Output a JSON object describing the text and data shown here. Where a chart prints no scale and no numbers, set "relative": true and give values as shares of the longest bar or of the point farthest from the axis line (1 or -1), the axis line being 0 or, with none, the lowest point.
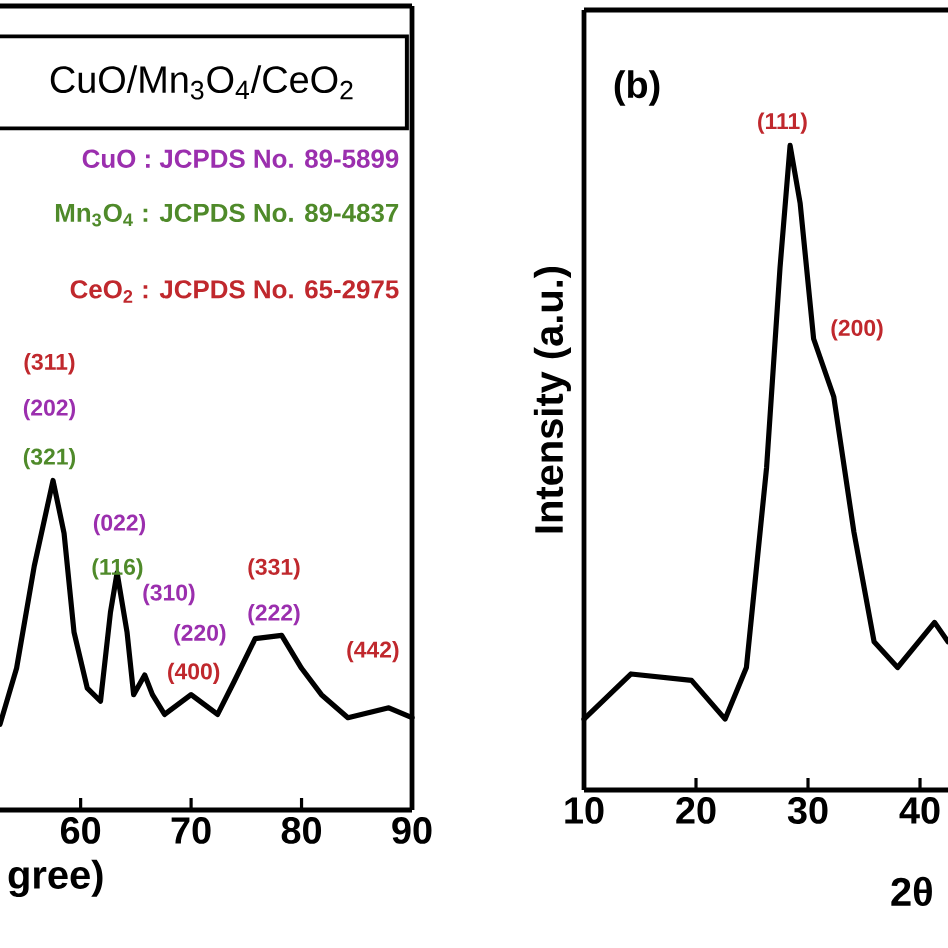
{
  "chart_data": [
    {
      "type": "line",
      "relative": true,
      "title": "CuO/Mn$_{3}$O$_{4}$/CeO$_{2}$",
      "xlabel": "gree)",
      "xlim": [
        52.7,
        90
      ],
      "xticks": [
        60,
        70,
        80,
        90
      ],
      "color": "#000000",
      "x": [
        52.7,
        54.2,
        55.8,
        57.5,
        58.5,
        59.4,
        60.6,
        61.8,
        62.7,
        63.3,
        64.2,
        64.8,
        65.8,
        66.5,
        67.6,
        70.0,
        72.4,
        73.9,
        75.8,
        78.2,
        80.0,
        81.8,
        84.2,
        87.9,
        90
      ],
      "values": [
        0.26,
        0.43,
        0.74,
        1.0,
        0.84,
        0.54,
        0.37,
        0.33,
        0.6,
        0.72,
        0.54,
        0.35,
        0.41,
        0.35,
        0.29,
        0.35,
        0.29,
        0.39,
        0.52,
        0.53,
        0.43,
        0.35,
        0.28,
        0.31,
        0.28
      ],
      "annotations": [
        "CuO : JCPDS No. 89-5899",
        "Mn$_{3}$O$_{4}$ : JCPDS No. 89-4837",
        "CeO$_{2}$ : JCPDS No. 65-2975",
        "(311)",
        "(202)",
        "(321)",
        "(022)",
        "(116)",
        "(310)",
        "(220)",
        "(400)",
        "(331)",
        "(222)",
        "(442)"
      ]
    },
    {
      "type": "line",
      "relative": true,
      "title": "(b)",
      "xlabel": "2θ",
      "ylabel": "Intensity (a.u.)",
      "xlim": [
        10,
        42.5
      ],
      "xticks": [
        10,
        20,
        30,
        40
      ],
      "color": "#000000",
      "x": [
        10,
        14.2,
        19.6,
        22.6,
        24.5,
        26.3,
        27.5,
        28.4,
        29.3,
        30.5,
        32.3,
        34.1,
        35.9,
        38.0,
        41.3,
        42.5
      ],
      "values": [
        0.11,
        0.18,
        0.17,
        0.11,
        0.19,
        0.5,
        0.81,
        1.0,
        0.91,
        0.7,
        0.61,
        0.4,
        0.23,
        0.19,
        0.26,
        0.23
      ],
      "annotations": [
        "(111)",
        "(200)"
      ]
    }
  ]
}
